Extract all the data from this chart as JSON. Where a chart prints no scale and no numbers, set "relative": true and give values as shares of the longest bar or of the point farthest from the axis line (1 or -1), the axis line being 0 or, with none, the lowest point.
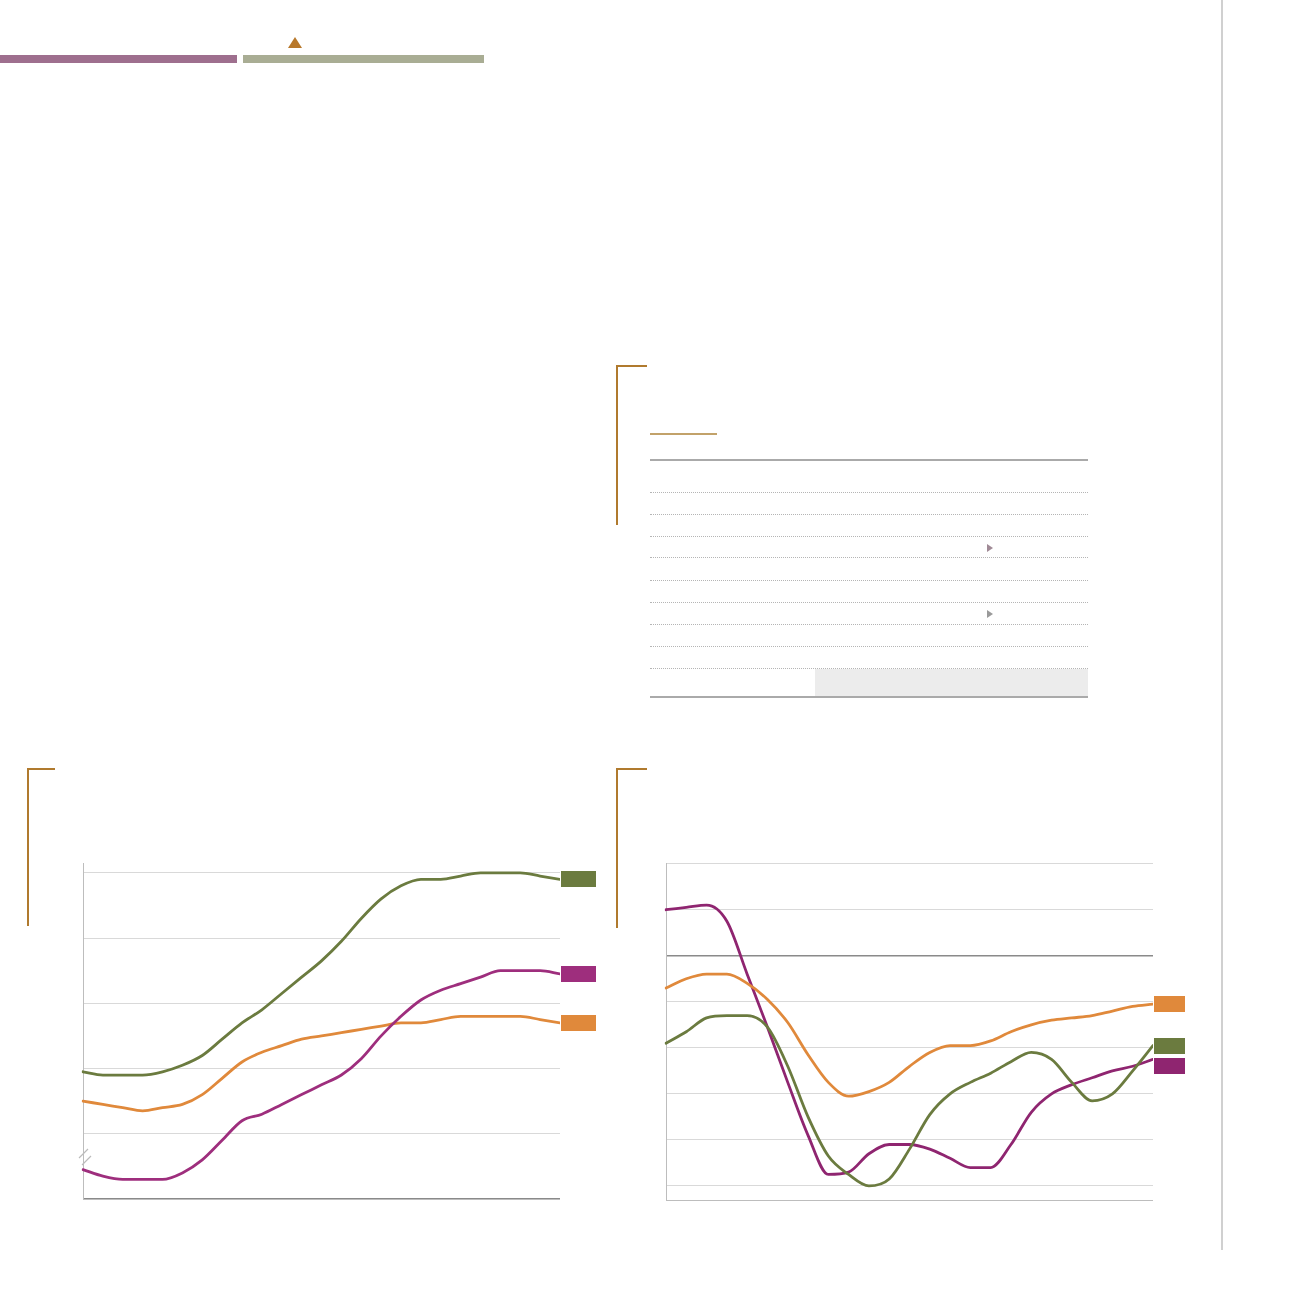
{
  "chart_data": [
    {
      "type": "line",
      "relative": true,
      "grid": "y",
      "tick_labels": false,
      "marker": "none",
      "line_style": "solid",
      "categories": [
        null,
        null,
        null,
        null,
        null,
        null,
        null,
        null,
        null,
        null,
        null,
        null,
        null,
        null,
        null,
        null,
        null,
        null,
        null,
        null,
        null,
        null,
        null,
        null,
        null
      ],
      "series": [
        {
          "color": "#6b7b3f",
          "values": [
            0.39,
            0.38,
            0.38,
            0.38,
            0.39,
            0.41,
            0.44,
            0.49,
            0.54,
            0.58,
            0.63,
            0.68,
            0.73,
            0.79,
            0.86,
            0.92,
            0.96,
            0.98,
            0.98,
            0.99,
            1.0,
            1.0,
            1.0,
            0.99,
            0.98
          ]
        },
        {
          "color": "#9e2e7d",
          "values": [
            0.09,
            0.07,
            0.06,
            0.06,
            0.06,
            0.08,
            0.12,
            0.18,
            0.24,
            0.26,
            0.29,
            0.32,
            0.35,
            0.38,
            0.43,
            0.5,
            0.56,
            0.61,
            0.64,
            0.66,
            0.68,
            0.7,
            0.7,
            0.7,
            0.69
          ]
        },
        {
          "color": "#e0893b",
          "values": [
            0.3,
            0.29,
            0.28,
            0.27,
            0.28,
            0.29,
            0.32,
            0.37,
            0.42,
            0.45,
            0.47,
            0.49,
            0.5,
            0.51,
            0.52,
            0.53,
            0.54,
            0.54,
            0.55,
            0.56,
            0.56,
            0.56,
            0.56,
            0.55,
            0.54
          ]
        }
      ]
    },
    {
      "type": "line",
      "relative": true,
      "grid": "y",
      "tick_labels": false,
      "marker": "none",
      "line_style": "solid",
      "categories": [
        null,
        null,
        null,
        null,
        null,
        null,
        null,
        null,
        null,
        null,
        null,
        null,
        null,
        null,
        null,
        null,
        null,
        null,
        null,
        null,
        null,
        null,
        null,
        null,
        null
      ],
      "series": [
        {
          "color": "#e0893b",
          "values": [
            -0.14,
            -0.1,
            -0.08,
            -0.08,
            -0.12,
            -0.19,
            -0.29,
            -0.43,
            -0.55,
            -0.61,
            -0.59,
            -0.55,
            -0.48,
            -0.42,
            -0.39,
            -0.39,
            -0.37,
            -0.33,
            -0.3,
            -0.28,
            -0.27,
            -0.26,
            -0.24,
            -0.22,
            -0.21
          ]
        },
        {
          "color": "#6b7b3f",
          "values": [
            -0.38,
            -0.33,
            -0.27,
            -0.26,
            -0.26,
            -0.31,
            -0.48,
            -0.7,
            -0.87,
            -0.95,
            -1.0,
            -0.97,
            -0.84,
            -0.69,
            -0.6,
            -0.55,
            -0.51,
            -0.46,
            -0.42,
            -0.45,
            -0.55,
            -0.63,
            -0.6,
            -0.5,
            -0.39
          ]
        },
        {
          "color": "#8f2570",
          "values": [
            0.2,
            0.21,
            0.22,
            0.15,
            -0.08,
            -0.31,
            -0.55,
            -0.78,
            -0.95,
            -0.94,
            -0.86,
            -0.82,
            -0.82,
            -0.84,
            -0.88,
            -0.92,
            -0.92,
            -0.82,
            -0.68,
            -0.6,
            -0.56,
            -0.53,
            -0.5,
            -0.48,
            -0.45
          ]
        }
      ]
    }
  ]
}
